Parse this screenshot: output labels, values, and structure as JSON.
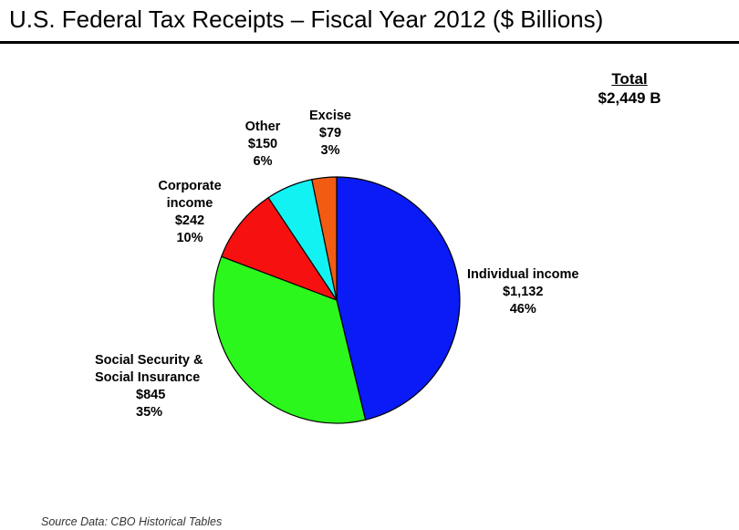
{
  "header": {
    "title": "U.S. Federal Tax Receipts – Fiscal Year 2012 ($ Billions)"
  },
  "total": {
    "label": "Total",
    "value": "$2,449 B"
  },
  "source": "Source Data: CBO Historical Tables",
  "chart_data": {
    "type": "pie",
    "title": "U.S. Federal Tax Receipts – Fiscal Year 2012 ($ Billions)",
    "unit": "$ Billions",
    "total": 2449,
    "slices": [
      {
        "key": "individual",
        "lines": [
          "Individual income"
        ],
        "value": 1132,
        "value_label": "$1,132",
        "pct_label": "46%",
        "color": "#0a1bf5"
      },
      {
        "key": "social",
        "lines": [
          "Social Security &",
          "Social Insurance"
        ],
        "value": 845,
        "value_label": "$845",
        "pct_label": "35%",
        "color": "#2cf71d"
      },
      {
        "key": "corporate",
        "lines": [
          "Corporate",
          "income"
        ],
        "value": 242,
        "value_label": "$242",
        "pct_label": "10%",
        "color": "#f71010"
      },
      {
        "key": "other",
        "lines": [
          "Other"
        ],
        "value": 150,
        "value_label": "$150",
        "pct_label": "6%",
        "color": "#12f2f2"
      },
      {
        "key": "excise",
        "lines": [
          "Excise"
        ],
        "value": 79,
        "value_label": "$79",
        "pct_label": "3%",
        "color": "#f25c12"
      }
    ]
  }
}
